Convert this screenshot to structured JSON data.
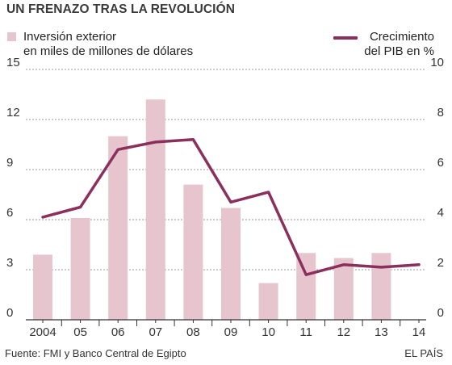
{
  "title": "UN FRENAZO TRAS LA REVOLUCIÓN",
  "legend": {
    "bars_label_line1": "Inversión exterior",
    "bars_label_line2": "en miles de millones de dólares",
    "line_label_line1": "Crecimiento",
    "line_label_line2": "del PIB en %"
  },
  "footer": {
    "source": "Fuente: FMI y Banco Central de Egipto",
    "brand": "EL PAÍS"
  },
  "colors": {
    "bars": "#e6c5cf",
    "line": "#8b2f5c",
    "grid": "#9a9a9a",
    "axis": "#333333"
  },
  "chart_data": {
    "type": "bar",
    "categories": [
      "2004",
      "05",
      "06",
      "07",
      "08",
      "09",
      "10",
      "11",
      "12",
      "13",
      "14"
    ],
    "series": [
      {
        "name": "Inversión exterior en miles de millones de dólares",
        "type": "bar",
        "axis": "left",
        "values": [
          3.9,
          6.1,
          11.0,
          13.2,
          8.1,
          6.7,
          2.2,
          4.0,
          3.7,
          4.0,
          null
        ]
      },
      {
        "name": "Crecimiento del PIB en %",
        "type": "line",
        "axis": "right",
        "values": [
          4.1,
          4.5,
          6.8,
          7.1,
          7.2,
          4.7,
          5.1,
          1.8,
          2.2,
          2.1,
          2.2
        ]
      }
    ],
    "left_axis": {
      "ylim": [
        0,
        15
      ],
      "ticks": [
        0,
        3,
        6,
        9,
        12,
        15
      ]
    },
    "right_axis": {
      "ylim": [
        0,
        10
      ],
      "ticks": [
        0,
        2,
        4,
        6,
        8,
        10
      ]
    },
    "grid": "horizontal dashed"
  }
}
